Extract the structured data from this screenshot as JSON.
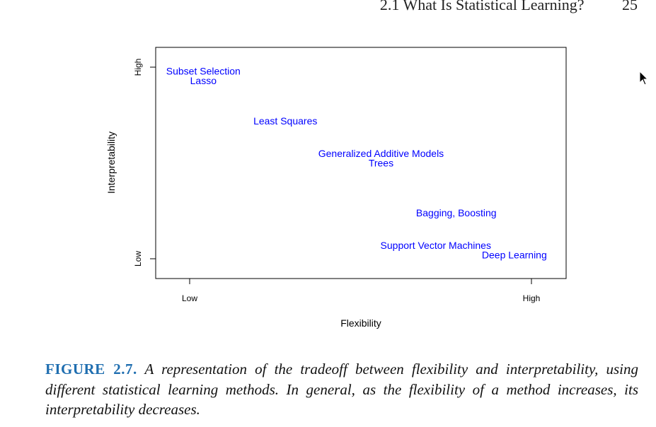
{
  "header": {
    "section": "2.1 What Is Statistical Learning?",
    "page_number": "25"
  },
  "chart_data": {
    "type": "scatter",
    "xlabel": "Flexibility",
    "ylabel": "Interpretability",
    "x_ticks": [
      "Low",
      "High"
    ],
    "y_ticks": [
      "Low",
      "High"
    ],
    "xlim": [
      0,
      1
    ],
    "ylim": [
      0,
      1
    ],
    "grid": false,
    "text_color": "#0000ff",
    "points": [
      {
        "label": "Subset Selection",
        "x": 0.04,
        "y": 0.98
      },
      {
        "label": "Lasso",
        "x": 0.04,
        "y": 0.93
      },
      {
        "label": "Least Squares",
        "x": 0.28,
        "y": 0.72
      },
      {
        "label": "Generalized Additive Models",
        "x": 0.56,
        "y": 0.55
      },
      {
        "label": "Trees",
        "x": 0.56,
        "y": 0.5
      },
      {
        "label": "Bagging, Boosting",
        "x": 0.78,
        "y": 0.24
      },
      {
        "label": "Support Vector Machines",
        "x": 0.72,
        "y": 0.07
      },
      {
        "label": "Deep Learning",
        "x": 0.95,
        "y": 0.02
      }
    ]
  },
  "caption": {
    "label": "FIGURE 2.7.",
    "text": "A representation of the tradeoff between flexibility and interpretability, using different statistical learning methods. In general, as the flexibility of a method increases, its interpretability decreases."
  }
}
